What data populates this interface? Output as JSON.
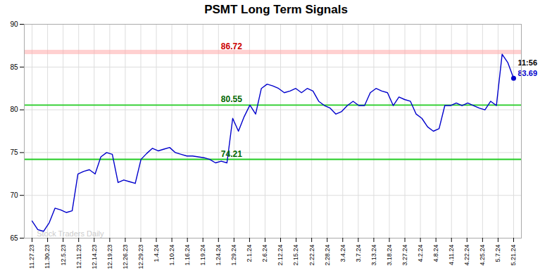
{
  "chart_data": {
    "type": "line",
    "title": "PSMT Long Term Signals",
    "x": [
      0,
      0.369,
      0.7381,
      1.1071,
      1.4762,
      1.8452,
      2.2143,
      2.5833,
      2.9524,
      3.3214,
      3.6905,
      4.0595,
      4.4286,
      4.7976,
      5.1667,
      5.5357,
      5.9048,
      6.2738,
      6.6429,
      7.0119,
      7.381,
      7.75,
      8.119,
      8.4881,
      8.8571,
      9.2262,
      9.5952,
      9.9643,
      10.3333,
      10.7024,
      11.0714,
      11.4405,
      11.8095,
      12.1786,
      12.5476,
      12.9167,
      13.2857,
      13.6548,
      14.0238,
      14.3929,
      14.7619,
      15.131,
      15.5,
      15.869,
      16.2381,
      16.6071,
      16.9762,
      17.3452,
      17.7143,
      18.0833,
      18.4524,
      18.8214,
      19.1905,
      19.5595,
      19.9286,
      20.2976,
      20.6667,
      21.0357,
      21.4048,
      21.7738,
      22.1429,
      22.5119,
      22.881,
      23.25,
      23.619,
      23.9881,
      24.3571,
      24.7262,
      25.0952,
      25.4643,
      25.8333,
      26.2024,
      26.5714,
      26.9405,
      27.3095,
      27.6786,
      28.0476,
      28.4167,
      28.7857,
      29.1548,
      29.5238,
      29.8929,
      30.2619,
      30.631,
      31
    ],
    "values": [
      67.0,
      66.0,
      65.8,
      66.8,
      68.5,
      68.3,
      68.0,
      68.2,
      72.5,
      72.8,
      73.0,
      72.5,
      74.5,
      75.0,
      74.8,
      71.5,
      71.8,
      71.6,
      71.4,
      74.2,
      74.9,
      75.5,
      75.2,
      75.4,
      75.6,
      75.0,
      74.8,
      74.6,
      74.6,
      74.5,
      74.4,
      74.2,
      73.8,
      74.0,
      73.8,
      79.0,
      77.5,
      79.2,
      80.55,
      79.5,
      82.5,
      83.0,
      82.8,
      82.5,
      82.0,
      82.2,
      82.5,
      82.0,
      82.5,
      82.2,
      81.0,
      80.5,
      80.2,
      79.5,
      79.8,
      80.5,
      81.0,
      80.5,
      80.5,
      82.0,
      82.5,
      82.2,
      82.0,
      80.5,
      81.5,
      81.2,
      81.0,
      79.5,
      79.0,
      78.0,
      77.5,
      77.8,
      80.5,
      80.5,
      80.8,
      80.5,
      80.8,
      80.5,
      80.2,
      80.0,
      81.0,
      80.5,
      86.5,
      85.5,
      83.69
    ],
    "color": "#0000CC",
    "xlim": [
      -0.5,
      31.5
    ],
    "xticks": [
      {
        "value": 0,
        "label": "11.27.23"
      },
      {
        "value": 1,
        "label": "11.30.23"
      },
      {
        "value": 2,
        "label": "12.5.23"
      },
      {
        "value": 3,
        "label": "12.11.23"
      },
      {
        "value": 4,
        "label": "12.14.23"
      },
      {
        "value": 5,
        "label": "12.19.23"
      },
      {
        "value": 6,
        "label": "12.26.23"
      },
      {
        "value": 7,
        "label": "12.29.23"
      },
      {
        "value": 8,
        "label": "1.4.24"
      },
      {
        "value": 9,
        "label": "1.10.24"
      },
      {
        "value": 10,
        "label": "1.16.24"
      },
      {
        "value": 11,
        "label": "1.19.24"
      },
      {
        "value": 12,
        "label": "1.24.24"
      },
      {
        "value": 13,
        "label": "1.29.24"
      },
      {
        "value": 14,
        "label": "2.1.24"
      },
      {
        "value": 15,
        "label": "2.6.24"
      },
      {
        "value": 16,
        "label": "2.12.24"
      },
      {
        "value": 17,
        "label": "2.15.24"
      },
      {
        "value": 18,
        "label": "2.22.24"
      },
      {
        "value": 19,
        "label": "2.28.24"
      },
      {
        "value": 20,
        "label": "3.4.24"
      },
      {
        "value": 21,
        "label": "3.7.24"
      },
      {
        "value": 22,
        "label": "3.13.24"
      },
      {
        "value": 23,
        "label": "3.18.24"
      },
      {
        "value": 24,
        "label": "3.27.24"
      },
      {
        "value": 25,
        "label": "4.2.24"
      },
      {
        "value": 26,
        "label": "4.8.24"
      },
      {
        "value": 27,
        "label": "4.11.24"
      },
      {
        "value": 28,
        "label": "4.22.24"
      },
      {
        "value": 29,
        "label": "4.25.24"
      },
      {
        "value": 30,
        "label": "5.7.24"
      },
      {
        "value": 31,
        "label": "5.21.24"
      }
    ],
    "ylim": [
      65,
      90
    ],
    "yticks": [
      65,
      70,
      75,
      80,
      85,
      90
    ],
    "grid": true,
    "band": {
      "center": 86.72,
      "half_width": 0.25,
      "color": "#FFAAAA",
      "label": "86.72",
      "label_color": "#CC0000"
    },
    "hlines": [
      {
        "value": 80.55,
        "color": "#22CC22",
        "label": "80.55",
        "label_color": "#006600"
      },
      {
        "value": 74.21,
        "color": "#22CC22",
        "label": "74.21",
        "label_color": "#006600"
      }
    ],
    "last_point": {
      "time": "11:56",
      "value": 83.69,
      "color": "#0000CC"
    },
    "watermark": {
      "text": "Stock Traders Daily",
      "color": "#CCCCCC"
    }
  }
}
